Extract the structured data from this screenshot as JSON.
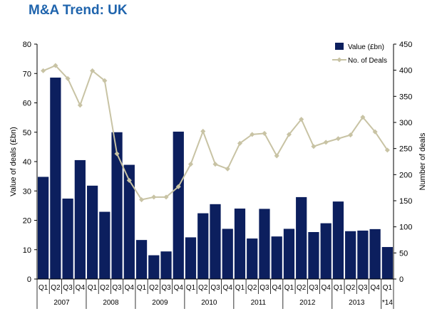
{
  "title": "M&A Trend: UK",
  "chart_data": {
    "type": "bar+line",
    "title": "M&A Trend: UK",
    "xlabel": "",
    "ylabel": "Value of deals (£bn)",
    "y2label": "Number of deals",
    "ylim": [
      0,
      80
    ],
    "y2lim": [
      0,
      450
    ],
    "yticks": [
      0,
      10,
      20,
      30,
      40,
      50,
      60,
      70,
      80
    ],
    "y2ticks": [
      0,
      50,
      100,
      150,
      200,
      250,
      300,
      350,
      400,
      450
    ],
    "categories": [
      "Q1",
      "Q2",
      "Q3",
      "Q4",
      "Q1",
      "Q2",
      "Q3",
      "Q4",
      "Q1",
      "Q2",
      "Q3",
      "Q4",
      "Q1",
      "Q2",
      "Q3",
      "Q4",
      "Q1",
      "Q2",
      "Q3",
      "Q4",
      "Q1",
      "Q2",
      "Q3",
      "Q4",
      "Q1",
      "Q2",
      "Q3",
      "Q4",
      "Q1"
    ],
    "groups": [
      {
        "label": "2007",
        "count": 4
      },
      {
        "label": "2008",
        "count": 4
      },
      {
        "label": "2009",
        "count": 4
      },
      {
        "label": "2010",
        "count": 4
      },
      {
        "label": "2011",
        "count": 4
      },
      {
        "label": "2012",
        "count": 4
      },
      {
        "label": "2013",
        "count": 4
      },
      {
        "label": "*14",
        "count": 1
      }
    ],
    "series": [
      {
        "name": "Value (£bn)",
        "type": "bar",
        "axis": "left",
        "color": "#0c1f5e",
        "values": [
          34.8,
          68.6,
          27.4,
          40.5,
          31.8,
          22.9,
          50,
          38.9,
          13.3,
          8.1,
          9.4,
          50.2,
          14.2,
          22.4,
          25.5,
          17.1,
          24,
          13.8,
          23.9,
          14.5,
          17.1,
          27.9,
          16,
          19,
          26.4,
          16.3,
          16.5,
          17,
          10.9
        ]
      },
      {
        "name": "No. of Deals",
        "type": "line",
        "axis": "right",
        "color": "#c8c3a4",
        "values": [
          399,
          409,
          384,
          333,
          399,
          380,
          240,
          189,
          152,
          157,
          157,
          177,
          220,
          283,
          220,
          211,
          260,
          277,
          279,
          236,
          277,
          306,
          254,
          262,
          269,
          276,
          310,
          282,
          247
        ]
      }
    ],
    "legend": "top-right",
    "grid": false
  }
}
